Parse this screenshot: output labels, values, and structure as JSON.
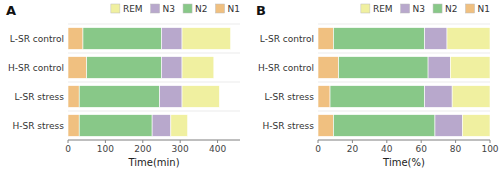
{
  "chart_data": [
    {
      "type": "bar",
      "orientation": "horizontal",
      "stacked": true,
      "title": "A",
      "categories": [
        "L-SR control",
        "H-SR control",
        "L-SR stress",
        "H-SR stress"
      ],
      "series": [
        {
          "name": "N1",
          "color": "#f0c080",
          "values": [
            40,
            50,
            30,
            30
          ]
        },
        {
          "name": "N2",
          "color": "#88c888",
          "values": [
            210,
            200,
            215,
            195
          ]
        },
        {
          "name": "N3",
          "color": "#b8a8cc",
          "values": [
            55,
            55,
            60,
            50
          ]
        },
        {
          "name": "REM",
          "color": "#f0f0a0",
          "values": [
            130,
            85,
            100,
            45
          ]
        }
      ],
      "x_label": "Time(min)",
      "xlim": [
        0,
        460
      ],
      "xticks": [
        0,
        100,
        200,
        300,
        400
      ],
      "grid": false,
      "legend": "upper right"
    },
    {
      "type": "bar",
      "orientation": "horizontal",
      "stacked": true,
      "title": "B",
      "categories": [
        "L-SR control",
        "H-SR control",
        "L-SR stress",
        "H-SR stress"
      ],
      "series": [
        {
          "name": "N1",
          "color": "#f0c080",
          "values": [
            9,
            12,
            7,
            9
          ]
        },
        {
          "name": "N2",
          "color": "#88c888",
          "values": [
            53,
            52,
            55,
            59
          ]
        },
        {
          "name": "N3",
          "color": "#b8a8cc",
          "values": [
            13,
            13,
            16,
            16
          ]
        },
        {
          "name": "REM",
          "color": "#f0f0a0",
          "values": [
            25,
            23,
            22,
            16
          ]
        }
      ],
      "x_label": "Time(%)",
      "xlim": [
        0,
        100
      ],
      "xticks": [
        0,
        20,
        40,
        60,
        80,
        100
      ],
      "grid": false,
      "legend": "upper right"
    }
  ]
}
